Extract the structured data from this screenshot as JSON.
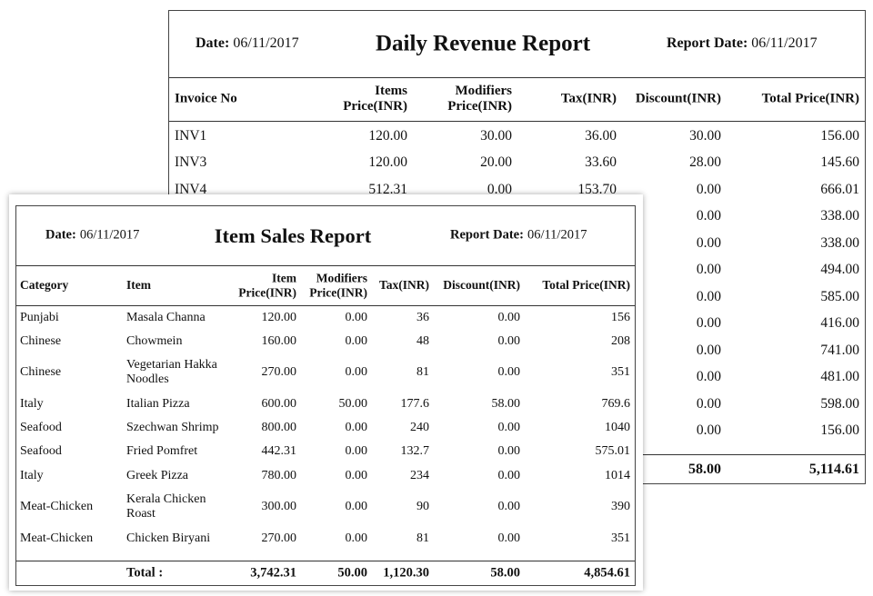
{
  "daily_revenue_report": {
    "date_label": "Date:",
    "date": "06/11/2017",
    "title": "Daily Revenue Report",
    "report_date_label": "Report Date:",
    "report_date": "06/11/2017",
    "columns": [
      "Invoice No",
      "Items Price(INR)",
      "Modifiers Price(INR)",
      "Tax(INR)",
      "Discount(INR)",
      "Total Price(INR)"
    ],
    "rows": [
      [
        "INV1",
        "120.00",
        "30.00",
        "36.00",
        "30.00",
        "156.00"
      ],
      [
        "INV3",
        "120.00",
        "20.00",
        "33.60",
        "28.00",
        "145.60"
      ],
      [
        "INV4",
        "512.31",
        "0.00",
        "153.70",
        "0.00",
        "666.01"
      ]
    ],
    "partially_hidden_rows": [
      [
        "0.00",
        "338.00"
      ],
      [
        "0.00",
        "338.00"
      ],
      [
        "0.00",
        "494.00"
      ],
      [
        "0.00",
        "585.00"
      ],
      [
        "0.00",
        "416.00"
      ],
      [
        "0.00",
        "741.00"
      ],
      [
        "0.00",
        "481.00"
      ],
      [
        "0.00",
        "598.00"
      ],
      [
        "0.00",
        "156.00"
      ]
    ],
    "totals": [
      "58.00",
      "5,114.61"
    ]
  },
  "item_sales_report": {
    "date_label": "Date:",
    "date": "06/11/2017",
    "title": "Item Sales Report",
    "report_date_label": "Report Date:",
    "report_date": "06/11/2017",
    "columns": [
      "Category",
      "Item",
      "Item Price(INR)",
      "Modifiers Price(INR)",
      "Tax(INR)",
      "Discount(INR)",
      "Total Price(INR)"
    ],
    "rows": [
      [
        "Punjabi",
        "Masala Channa",
        "120.00",
        "0.00",
        "36",
        "0.00",
        "156"
      ],
      [
        "Chinese",
        "Chowmein",
        "160.00",
        "0.00",
        "48",
        "0.00",
        "208"
      ],
      [
        "Chinese",
        "Vegetarian Hakka Noodles",
        "270.00",
        "0.00",
        "81",
        "0.00",
        "351"
      ],
      [
        "Italy",
        "Italian Pizza",
        "600.00",
        "50.00",
        "177.6",
        "58.00",
        "769.6"
      ],
      [
        "Seafood",
        "Szechwan Shrimp",
        "800.00",
        "0.00",
        "240",
        "0.00",
        "1040"
      ],
      [
        "Seafood",
        "Fried Pomfret",
        "442.31",
        "0.00",
        "132.7",
        "0.00",
        "575.01"
      ],
      [
        "Italy",
        "Greek Pizza",
        "780.00",
        "0.00",
        "234",
        "0.00",
        "1014"
      ],
      [
        "Meat-Chicken",
        "Kerala Chicken Roast",
        "300.00",
        "0.00",
        "90",
        "0.00",
        "390"
      ],
      [
        "Meat-Chicken",
        "Chicken Biryani",
        "270.00",
        "0.00",
        "81",
        "0.00",
        "351"
      ]
    ],
    "total_label": "Total :",
    "totals": [
      "3,742.31",
      "50.00",
      "1,120.30",
      "58.00",
      "4,854.61"
    ]
  }
}
